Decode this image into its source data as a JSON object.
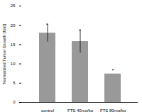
{
  "chart_data": {
    "type": "bar",
    "categories": [
      "control",
      "FTS 40mg/kg",
      "FTS 80mg/kg"
    ],
    "values": [
      18,
      15.8,
      7.4
    ],
    "errors": [
      2.3,
      3,
      0
    ],
    "significance": [
      null,
      null,
      "*"
    ],
    "color": "#999999",
    "y_label": "Normalized Tumor Growth [fold]",
    "ylim": [
      0,
      25
    ],
    "yticks": [
      0,
      5,
      10,
      15,
      20,
      25
    ],
    "grid": false
  }
}
